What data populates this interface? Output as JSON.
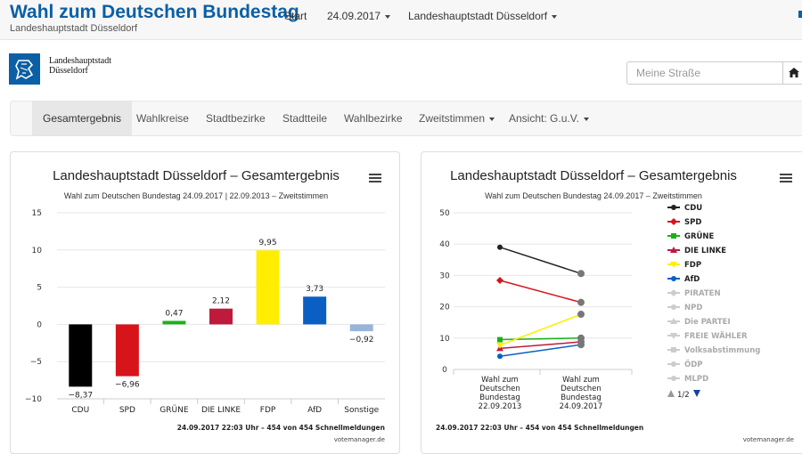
{
  "header": {
    "title": "Wahl zum Deutschen Bundestag",
    "subtitle": "Landeshauptstadt Düsseldorf",
    "nav": {
      "start": "Start",
      "date": "24.09.2017",
      "region": "Landeshauptstadt Düsseldorf"
    }
  },
  "logo": {
    "line1": "Landeshauptstadt",
    "line2": "Düsseldorf"
  },
  "search": {
    "placeholder": "Meine Straße"
  },
  "navbar": {
    "items": [
      "Gesamtergebnis",
      "Wahlkreise",
      "Stadtbezirke",
      "Stadtteile",
      "Wahlbezirke",
      "Zweitstimmen",
      "Ansicht: G.u.V."
    ]
  },
  "colors": {
    "CDU": "#000000",
    "SPD": "#d7141a",
    "GRUENE": "#1ab21a",
    "LINKE": "#be1a3c",
    "FDP": "#ffee00",
    "AfD": "#0a5fc4",
    "Sonstige": "#99b4d9",
    "brand": "#0b5fa5"
  },
  "chart1": {
    "title": "Landeshauptstadt Düsseldorf – Gesamtergebnis",
    "subtitle": "Wahl zum Deutschen Bundestag 24.09.2017 | 22.09.2013 – Zweitstimmen",
    "footer": "24.09.2017 22:03 Uhr – 454 von 454 Schnellmeldungen",
    "credit": "votemanager.de"
  },
  "chart2": {
    "title": "Landeshauptstadt Düsseldorf – Gesamtergebnis",
    "subtitle": "Wahl zum Deutschen Bundestag 24.09.2017 – Zweitstimmen",
    "footer": "24.09.2017 22:03 Uhr – 454 von 454 Schnellmeldungen",
    "credit": "votemanager.de",
    "pager": "1/2"
  },
  "chart_data": [
    {
      "type": "bar",
      "categories": [
        "CDU",
        "SPD",
        "GRÜNE",
        "DIE LINKE",
        "FDP",
        "AfD",
        "Sonstige"
      ],
      "values": [
        -8.37,
        -6.96,
        0.47,
        2.12,
        9.95,
        3.73,
        -0.92
      ],
      "value_labels": [
        "−8,37",
        "−6,96",
        "0,47",
        "2,12",
        "9,95",
        "3,73",
        "−0,92"
      ],
      "colors": [
        "#000000",
        "#d7141a",
        "#1ab21a",
        "#be1a3c",
        "#ffee00",
        "#0a5fc4",
        "#99b4d9"
      ],
      "yticks": [
        "15",
        "10",
        "5",
        "0",
        "−5",
        "−10"
      ],
      "ylim": [
        -10,
        15
      ]
    },
    {
      "type": "line",
      "x_labels": [
        [
          "Wahl zum",
          "Deutschen",
          "Bundestag",
          "22.09.2013"
        ],
        [
          "Wahl zum",
          "Deutschen",
          "Bundestag",
          "24.09.2017"
        ]
      ],
      "yticks": [
        "50",
        "40",
        "30",
        "20",
        "10",
        "0"
      ],
      "ylim": [
        0,
        50
      ],
      "series": [
        {
          "name": "CDU",
          "values": [
            39,
            30.6
          ],
          "color": "#222222",
          "marker": "circle"
        },
        {
          "name": "SPD",
          "values": [
            28.4,
            21.4
          ],
          "color": "#d7141a",
          "marker": "diamond"
        },
        {
          "name": "GRÜNE",
          "values": [
            9.5,
            10
          ],
          "color": "#1ab21a",
          "marker": "square"
        },
        {
          "name": "DIE LINKE",
          "values": [
            6.7,
            8.8
          ],
          "color": "#be1a3c",
          "marker": "triangle"
        },
        {
          "name": "FDP",
          "values": [
            7.7,
            17.6
          ],
          "color": "#ffee00",
          "marker": "triangle-down"
        },
        {
          "name": "AfD",
          "values": [
            4.2,
            7.9
          ],
          "color": "#0a5fc4",
          "marker": "circle"
        }
      ],
      "legend_inactive": [
        "PIRATEN",
        "NPD",
        "Die PARTEI",
        "FREIE WÄHLER",
        "Volksabstimmung",
        "ÖDP",
        "MLPD"
      ],
      "legend_inactive_markers": [
        "diamond",
        "circle",
        "triangle",
        "triangle-down",
        "square",
        "circle",
        "circle"
      ]
    }
  ]
}
